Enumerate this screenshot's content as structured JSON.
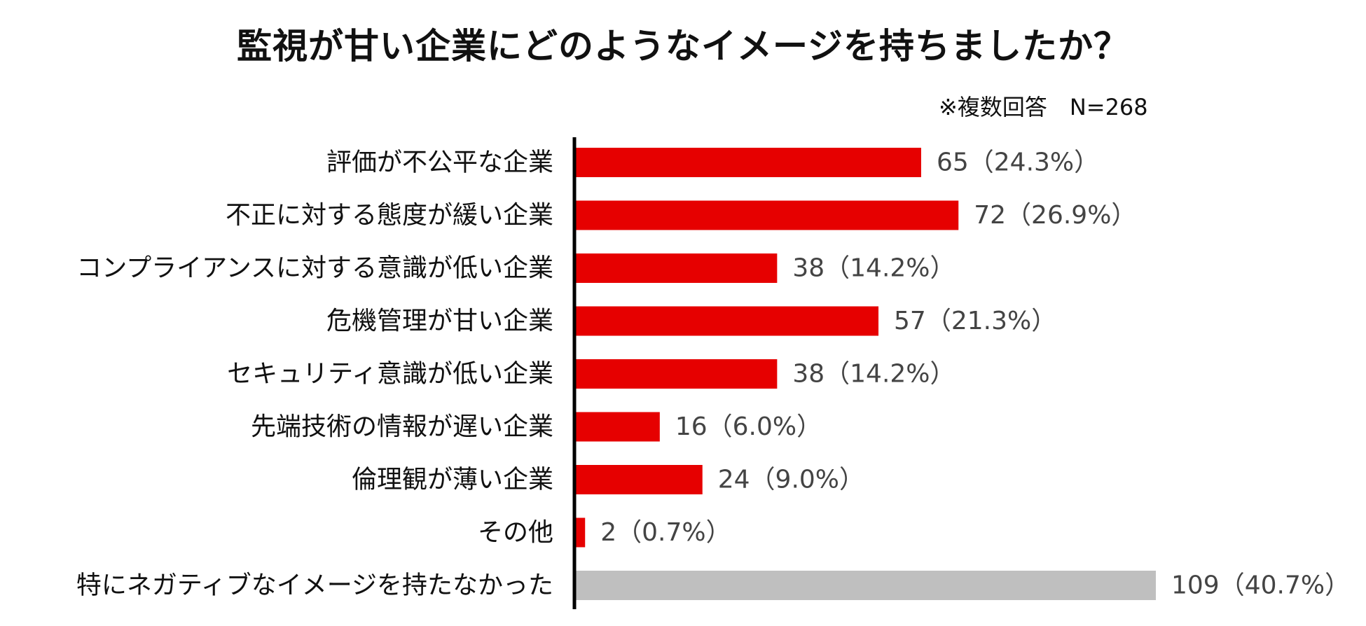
{
  "title": "監視が甘い企業にどのようなイメージを持ちましたか？",
  "note": "※複数回答　N=268",
  "colors": {
    "highlight": "#e60000",
    "muted": "#bfbfbf",
    "axis": "#000000"
  },
  "chart_data": {
    "type": "bar",
    "orientation": "horizontal",
    "title": "監視が甘い企業にどのようなイメージを持ちましたか？",
    "xlim": [
      0,
      109
    ],
    "categories": [
      "評価が不公平な企業",
      "不正に対する態度が緩い企業",
      "コンプライアンスに対する意識が低い企業",
      "危機管理が甘い企業",
      "セキュリティ意識が低い企業",
      "先端技術の情報が遅い企業",
      "倫理観が薄い企業",
      "その他",
      "特にネガティブなイメージを持たなかった"
    ],
    "values": [
      65,
      72,
      38,
      57,
      38,
      16,
      24,
      2,
      109
    ],
    "labels": [
      "65（24.3%）",
      "72（26.9%）",
      "38（14.2%）",
      "57（21.3%）",
      "38（14.2%）",
      "16（6.0%）",
      "24（9.0%）",
      "2（0.7%）",
      "109（40.7%）"
    ],
    "bar_colors": [
      "highlight",
      "highlight",
      "highlight",
      "highlight",
      "highlight",
      "highlight",
      "highlight",
      "highlight",
      "muted"
    ],
    "grid": false,
    "legend": "none"
  }
}
